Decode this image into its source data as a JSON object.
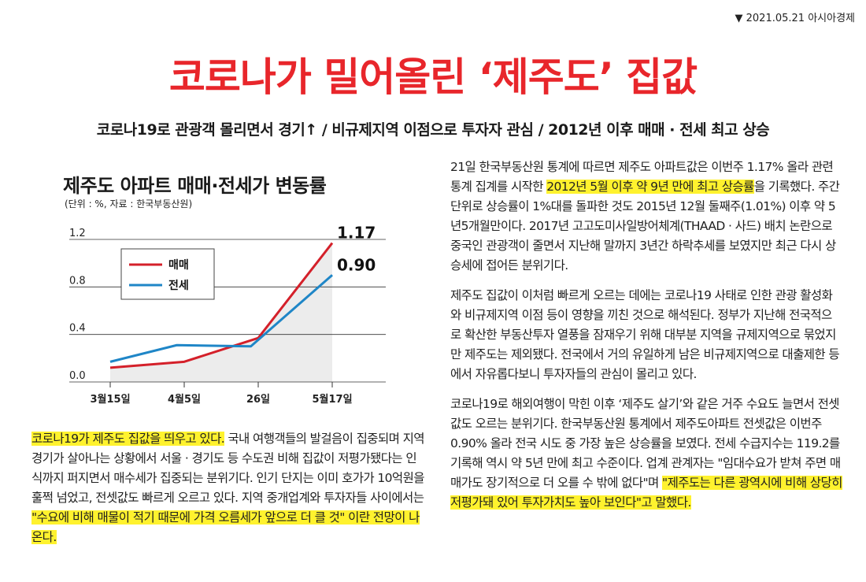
{
  "dateline": "▼ 2021.05.21 아시아경제",
  "headline": "코로나가 밀어올린 ‘제주도’ 집값",
  "subhead": "코로나19로 관광객 몰리면서 경기↑ / 비규제지역 이점으로 투자자 관심 / 2012년 이후 매매 · 전세 최고 상승",
  "chart": {
    "title": "제주도 아파트 매매·전세가 변동률",
    "source": "(단위 : %, 자료 : 한국부동산원)"
  },
  "chart_data": {
    "type": "line",
    "title": "제주도 아파트 매매·전세가 변동률",
    "xlabel": "",
    "ylabel": "",
    "categories": [
      "3월15일",
      "4월5일",
      "26일",
      "5월17일"
    ],
    "x_positions_note": "",
    "yticks": [
      "1.2",
      "0.8",
      "0.4",
      "0.0"
    ],
    "ylim": [
      0,
      1.2
    ],
    "grid": true,
    "legend": "top-left",
    "series": [
      {
        "name": "매매",
        "color": "#d4202a",
        "x": [
          0,
          1,
          2,
          3
        ],
        "values": [
          0.12,
          0.17,
          0.37,
          1.17
        ],
        "end_label": "1.17"
      },
      {
        "name": "전세",
        "color": "#1f86c7",
        "x": [
          0,
          0.9,
          1.9,
          3
        ],
        "values": [
          0.17,
          0.31,
          0.3,
          0.9
        ],
        "end_label": "0.90"
      }
    ]
  },
  "left_col": {
    "p1_hl": "코로나19가 제주도 집값을 띄우고 있다.",
    "p1_a": " 국내 여행객들의 발걸음이 집중되며 지역 경기가 살아나는 상황에서 서울 · 경기도 등 수도권 비해 집값이 저평가됐다는 인식까지 퍼지면서 매수세가 집중되는 분위기다. 인기 단지는 이미 호가가 10억원을 훌쩍 넘었고, 전셋값도 빠르게 오르고 있다. 지역 중개업계와 투자자들 사이에서는 ",
    "p1_hl2": "\"수요에 비해 매물이 적기 때문에 가격 오름세가 앞으로 더 클 것\" 이란 전망이 나온다."
  },
  "right_col": {
    "p1_a": "21일 한국부동산원 통계에 따르면 제주도 아파트값은 이번주 1.17% 올라 관련 통계 집계를 시작한 ",
    "p1_hl": "2012년 5월 이후 약 9년 만에 최고 상승률",
    "p1_b": "을 기록했다. 주간 단위로 상승률이 1%대를 돌파한 것도 2015년 12월 둘째주(1.01%) 이후 약 5년5개월만이다. 2017년 고고도미사일방어체계(THAAD · 사드) 배치 논란으로 중국인 관광객이 줄면서 지난해 말까지 3년간 하락추세를 보였지만 최근 다시 상승세에 접어든 분위기다.",
    "p2": "제주도 집값이 이처럼 빠르게 오르는 데에는 코로나19 사태로 인한 관광 활성화와 비규제지역 이점 등이 영향을 끼친 것으로 해석된다. 정부가 지난해 전국적으로 확산한 부동산투자 열풍을 잠재우기 위해 대부분 지역을 규제지역으로 묶었지만 제주도는 제외됐다. 전국에서 거의 유일하게 남은 비규제지역으로 대출제한 등에서 자유롭다보니 투자자들의 관심이 몰리고 있다.",
    "p3_a": "코로나19로 해외여행이 막힌 이후 ‘제주도 살기’와 같은 거주 수요도 늘면서 전셋값도 오르는 분위기다. 한국부동산원 통계에서 제주도아파트 전셋값은 이번주 0.90% 올라 전국 시도 중 가장 높은 상승률을 보였다. 전세 수급지수는 119.2를 기록해 역시 약 5년 만에 최고 수준이다. 업계 관계자는 \"임대수요가 받쳐 주면 매매가도 장기적으로 더 오를 수 밖에 없다\"며 ",
    "p3_hl": "\"제주도는 다른 광역시에 비해 상당히 저평가돼 있어 투자가치도 높아 보인다\"고 말했다."
  }
}
